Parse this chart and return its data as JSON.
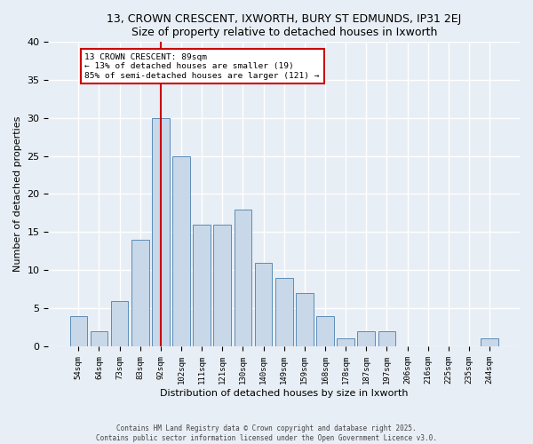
{
  "title1": "13, CROWN CRESCENT, IXWORTH, BURY ST EDMUNDS, IP31 2EJ",
  "title2": "Size of property relative to detached houses in Ixworth",
  "xlabel": "Distribution of detached houses by size in Ixworth",
  "ylabel": "Number of detached properties",
  "bar_color": "#c8d8e8",
  "bar_edge_color": "#5b8db8",
  "bg_color": "#e8eef5",
  "grid_color": "#ffffff",
  "categories": [
    "54sqm",
    "64sqm",
    "73sqm",
    "83sqm",
    "92sqm",
    "102sqm",
    "111sqm",
    "121sqm",
    "130sqm",
    "140sqm",
    "149sqm",
    "159sqm",
    "168sqm",
    "178sqm",
    "187sqm",
    "197sqm",
    "206sqm",
    "216sqm",
    "225sqm",
    "235sqm",
    "244sqm"
  ],
  "values": [
    4,
    2,
    6,
    14,
    30,
    25,
    16,
    16,
    18,
    11,
    9,
    7,
    4,
    1,
    2,
    2,
    0,
    0,
    0,
    0,
    1
  ],
  "ylim": [
    0,
    40
  ],
  "yticks": [
    0,
    5,
    10,
    15,
    20,
    25,
    30,
    35,
    40
  ],
  "vline_x": 4,
  "vline_color": "#cc0000",
  "annotation_text": "13 CROWN CRESCENT: 89sqm\n← 13% of detached houses are smaller (19)\n85% of semi-detached houses are larger (121) →",
  "annotation_box_color": "#ffffff",
  "annotation_border_color": "#cc0000",
  "footer1": "Contains HM Land Registry data © Crown copyright and database right 2025.",
  "footer2": "Contains public sector information licensed under the Open Government Licence v3.0."
}
